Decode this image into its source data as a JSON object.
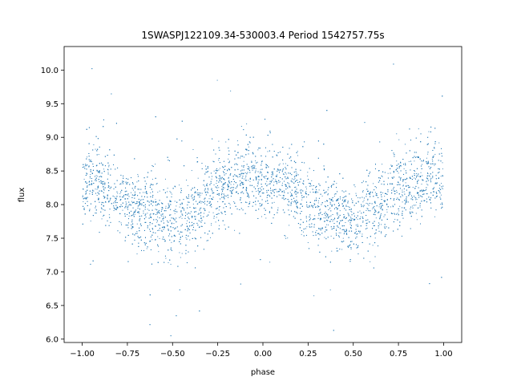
{
  "chart_data": {
    "type": "scatter",
    "title": "1SWASPJ122109.34-530003.4 Period 1542757.75s",
    "xlabel": "phase",
    "ylabel": "flux",
    "xlim": [
      -1.1,
      1.1
    ],
    "ylim": [
      5.95,
      10.35
    ],
    "xticks": [
      -1.0,
      -0.75,
      -0.5,
      -0.25,
      0.0,
      0.25,
      0.5,
      0.75,
      1.0
    ],
    "xtick_labels": [
      "−1.00",
      "−0.75",
      "−0.50",
      "−0.25",
      "0.00",
      "0.25",
      "0.50",
      "0.75",
      "1.00"
    ],
    "yticks": [
      6.0,
      6.5,
      7.0,
      7.5,
      8.0,
      8.5,
      9.0,
      9.5,
      10.0
    ],
    "ytick_labels": [
      "6.0",
      "6.5",
      "7.0",
      "7.5",
      "8.0",
      "8.5",
      "9.0",
      "9.5",
      "10.0"
    ],
    "grid": false,
    "marker_color": "#1f77b4",
    "series": [
      {
        "phase_range": [
          -1.0,
          1.0
        ],
        "profile": [
          {
            "x": -1.0,
            "y": 8.35
          },
          {
            "x": -0.9,
            "y": 8.3
          },
          {
            "x": -0.75,
            "y": 8.0
          },
          {
            "x": -0.6,
            "y": 7.85
          },
          {
            "x": -0.5,
            "y": 7.75
          },
          {
            "x": -0.4,
            "y": 7.85
          },
          {
            "x": -0.25,
            "y": 8.2
          },
          {
            "x": -0.1,
            "y": 8.45
          },
          {
            "x": 0.0,
            "y": 8.35
          },
          {
            "x": 0.1,
            "y": 8.3
          },
          {
            "x": 0.25,
            "y": 8.0
          },
          {
            "x": 0.4,
            "y": 7.85
          },
          {
            "x": 0.5,
            "y": 7.75
          },
          {
            "x": 0.6,
            "y": 7.85
          },
          {
            "x": 0.75,
            "y": 8.2
          },
          {
            "x": 0.9,
            "y": 8.45
          },
          {
            "x": 1.0,
            "y": 8.35
          }
        ]
      }
    ]
  }
}
